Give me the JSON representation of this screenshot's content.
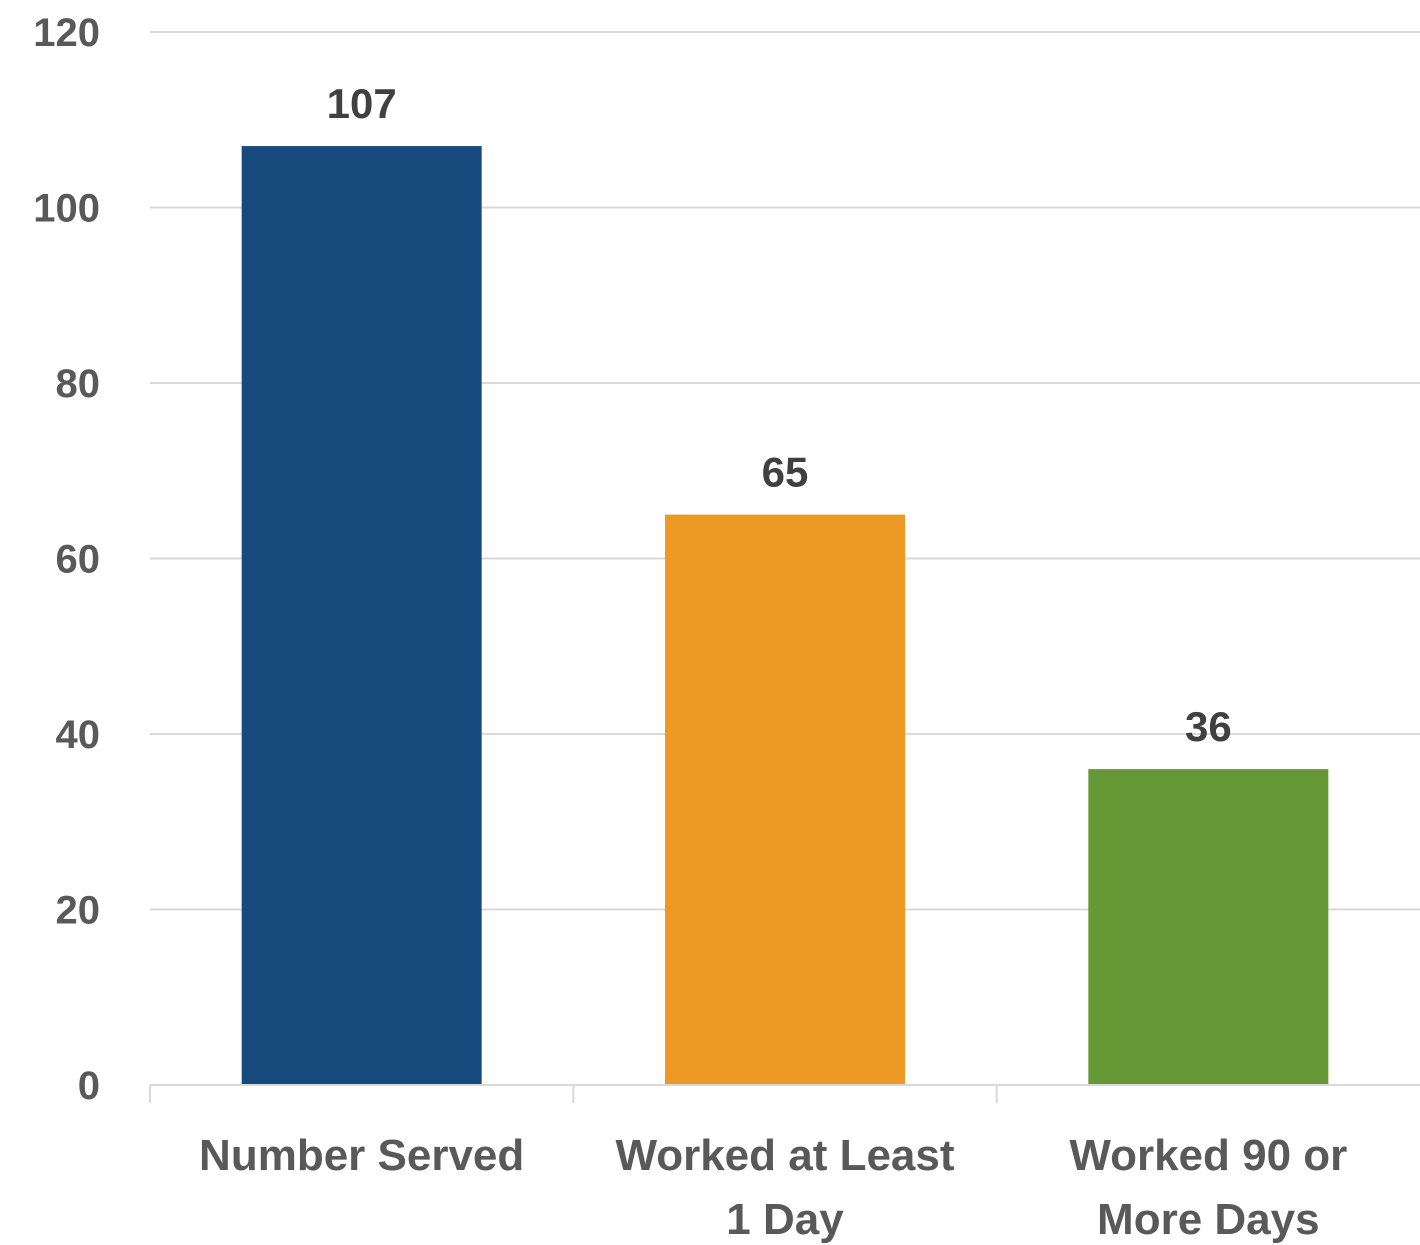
{
  "chart_data": {
    "type": "bar",
    "categories": [
      [
        "Number Served"
      ],
      [
        "Worked at Least",
        "1 Day"
      ],
      [
        "Worked 90 or",
        "More Days"
      ]
    ],
    "values": [
      107,
      65,
      36
    ],
    "colors": [
      "#174a7c",
      "#ed9a25",
      "#669935"
    ],
    "data_labels": [
      "107",
      "65",
      "36"
    ],
    "yticks": [
      0,
      20,
      40,
      60,
      80,
      100,
      120
    ],
    "ylim": [
      0,
      120
    ],
    "grid": true,
    "legend": "none"
  }
}
